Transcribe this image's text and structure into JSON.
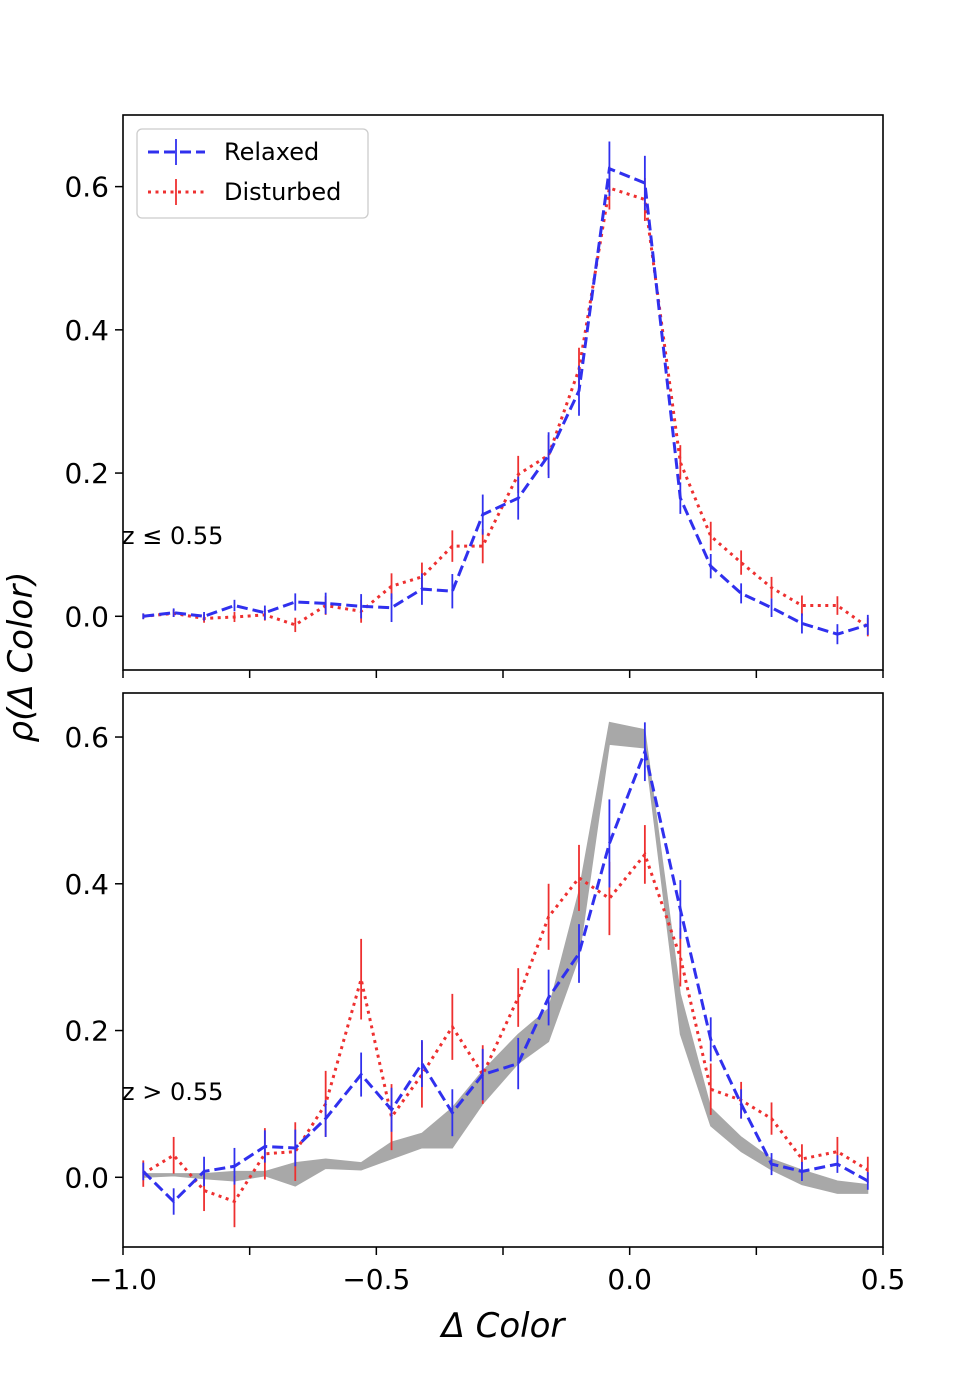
{
  "chart_data": [
    {
      "type": "line",
      "panel": "top",
      "annotation": "z ≤ 0.55",
      "xlim": [
        -1.0,
        0.5
      ],
      "ylim": [
        -0.075,
        0.7
      ],
      "yticks": [
        0.0,
        0.2,
        0.4,
        0.6
      ],
      "ytick_labels": [
        "0.0",
        "0.2",
        "0.4",
        "0.6"
      ],
      "xticks": [
        -1.0,
        -0.5,
        0.0,
        0.5
      ],
      "xtick_labels": [
        "",
        "",
        "",
        ""
      ],
      "grid": false,
      "legend": {
        "placement": "upper-left",
        "entries": [
          "Relaxed",
          "Disturbed"
        ]
      },
      "x": [
        -0.96,
        -0.9,
        -0.84,
        -0.78,
        -0.72,
        -0.66,
        -0.6,
        -0.53,
        -0.47,
        -0.41,
        -0.35,
        -0.29,
        -0.22,
        -0.16,
        -0.1,
        -0.04,
        0.03,
        0.1,
        0.16,
        0.22,
        0.28,
        0.34,
        0.41,
        0.47
      ],
      "series": [
        {
          "name": "Relaxed",
          "color": "#3030ee",
          "style": "dashed",
          "y": [
            0.0,
            0.005,
            0.0,
            0.015,
            0.005,
            0.02,
            0.018,
            0.014,
            0.012,
            0.038,
            0.035,
            0.142,
            0.165,
            0.225,
            0.315,
            0.625,
            0.605,
            0.165,
            0.07,
            0.032,
            0.012,
            -0.01,
            -0.025,
            -0.012
          ],
          "err": [
            0.004,
            0.006,
            0.006,
            0.008,
            0.01,
            0.012,
            0.015,
            0.017,
            0.02,
            0.022,
            0.024,
            0.028,
            0.03,
            0.032,
            0.035,
            0.038,
            0.038,
            0.022,
            0.017,
            0.014,
            0.013,
            0.014,
            0.014,
            0.014
          ]
        },
        {
          "name": "Disturbed",
          "color": "#ee3030",
          "style": "dotted",
          "y": [
            0.0,
            0.004,
            -0.003,
            -0.001,
            0.002,
            -0.012,
            0.015,
            0.007,
            0.042,
            0.055,
            0.098,
            0.098,
            0.198,
            0.225,
            0.345,
            0.598,
            0.582,
            0.215,
            0.112,
            0.075,
            0.04,
            0.015,
            0.015,
            -0.015
          ],
          "err": [
            0.004,
            0.005,
            0.006,
            0.007,
            0.008,
            0.01,
            0.013,
            0.016,
            0.018,
            0.02,
            0.022,
            0.024,
            0.026,
            0.028,
            0.03,
            0.03,
            0.03,
            0.024,
            0.02,
            0.017,
            0.015,
            0.014,
            0.013,
            0.013
          ]
        }
      ]
    },
    {
      "type": "line",
      "panel": "bottom",
      "annotation": "z > 0.55",
      "xlim": [
        -1.0,
        0.5
      ],
      "ylim": [
        -0.095,
        0.66
      ],
      "yticks": [
        0.0,
        0.2,
        0.4,
        0.6
      ],
      "ytick_labels": [
        "0.0",
        "0.2",
        "0.4",
        "0.6"
      ],
      "xticks": [
        -1.0,
        -0.5,
        0.0,
        0.5
      ],
      "xtick_labels": [
        "−1.0",
        "−0.5",
        "0.0",
        "0.5"
      ],
      "grid": false,
      "x": [
        -0.96,
        -0.9,
        -0.84,
        -0.78,
        -0.72,
        -0.66,
        -0.6,
        -0.53,
        -0.47,
        -0.41,
        -0.35,
        -0.29,
        -0.22,
        -0.16,
        -0.1,
        -0.04,
        0.03,
        0.1,
        0.16,
        0.22,
        0.28,
        0.34,
        0.41,
        0.47
      ],
      "band": {
        "color": "#a8a8a8",
        "x": [
          -0.96,
          -0.9,
          -0.84,
          -0.78,
          -0.72,
          -0.66,
          -0.6,
          -0.53,
          -0.47,
          -0.41,
          -0.35,
          -0.29,
          -0.22,
          -0.16,
          -0.1,
          -0.04,
          0.03,
          0.1,
          0.16,
          0.22,
          0.28,
          0.34,
          0.41,
          0.47
        ],
        "upper": [
          0.005,
          0.005,
          0.005,
          0.008,
          0.008,
          0.02,
          0.025,
          0.02,
          0.048,
          0.06,
          0.095,
          0.145,
          0.195,
          0.23,
          0.39,
          0.62,
          0.61,
          0.25,
          0.095,
          0.055,
          0.025,
          0.01,
          -0.005,
          -0.01
        ],
        "lower": [
          0.0,
          0.002,
          -0.002,
          -0.005,
          0.002,
          -0.012,
          0.012,
          0.01,
          0.025,
          0.04,
          0.04,
          0.1,
          0.155,
          0.185,
          0.3,
          0.59,
          0.585,
          0.195,
          0.07,
          0.035,
          0.01,
          -0.01,
          -0.022,
          -0.022
        ]
      },
      "series": [
        {
          "name": "Relaxed",
          "color": "#3030ee",
          "style": "dashed",
          "y": [
            0.008,
            -0.033,
            0.008,
            0.015,
            0.042,
            0.04,
            0.08,
            0.14,
            0.092,
            0.155,
            0.088,
            0.14,
            0.155,
            0.245,
            0.305,
            0.455,
            0.58,
            0.365,
            0.188,
            0.1,
            0.018,
            0.008,
            0.018,
            -0.005
          ],
          "err": [
            0.012,
            0.018,
            0.02,
            0.025,
            0.022,
            0.025,
            0.025,
            0.03,
            0.03,
            0.032,
            0.032,
            0.035,
            0.035,
            0.038,
            0.04,
            0.06,
            0.04,
            0.04,
            0.03,
            0.02,
            0.015,
            0.013,
            0.012,
            0.012
          ]
        },
        {
          "name": "Disturbed",
          "color": "#ee3030",
          "style": "dotted",
          "y": [
            0.005,
            0.03,
            -0.018,
            -0.033,
            0.032,
            0.035,
            0.1,
            0.27,
            0.082,
            0.14,
            0.205,
            0.14,
            0.245,
            0.355,
            0.408,
            0.38,
            0.44,
            0.3,
            0.12,
            0.105,
            0.08,
            0.025,
            0.035,
            0.01
          ],
          "err": [
            0.018,
            0.025,
            0.028,
            0.035,
            0.035,
            0.04,
            0.045,
            0.055,
            0.045,
            0.045,
            0.045,
            0.04,
            0.04,
            0.045,
            0.045,
            0.05,
            0.04,
            0.04,
            0.035,
            0.025,
            0.022,
            0.02,
            0.02,
            0.018
          ]
        }
      ]
    }
  ],
  "labels": {
    "ylabel": "ρ(Δ  Color)",
    "xlabel": "Δ  Color",
    "top_annotation": "z ≤ 0.55",
    "bottom_annotation": "z > 0.55",
    "legend_relaxed": "Relaxed",
    "legend_disturbed": "Disturbed"
  }
}
